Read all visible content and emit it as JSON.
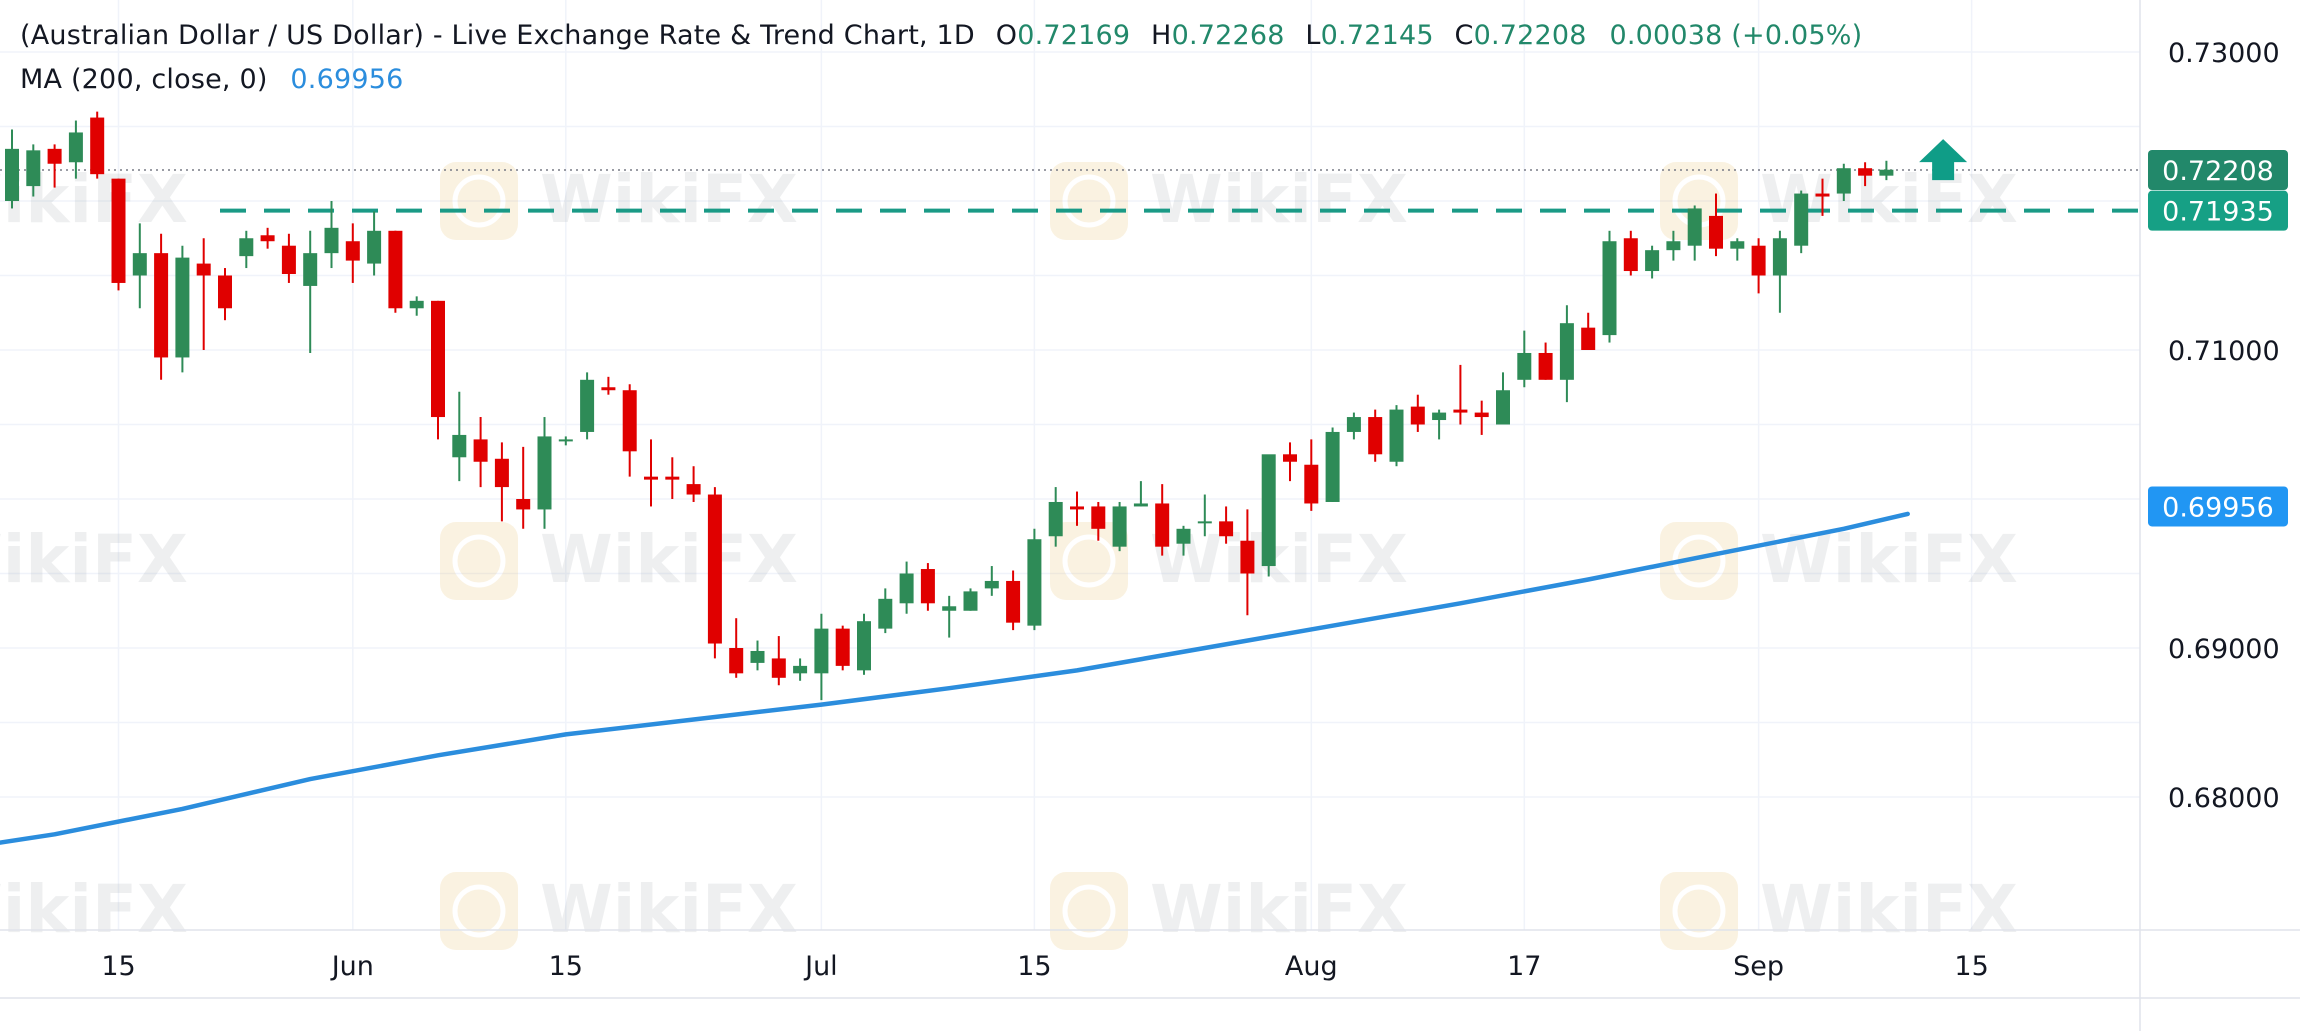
{
  "header": {
    "title": "(Australian Dollar / US Dollar) - Live Exchange Rate & Trend Chart, 1D",
    "open_label": "O",
    "open_value": "0.72169",
    "high_label": "H",
    "high_value": "0.72268",
    "low_label": "L",
    "low_value": "0.72145",
    "close_label": "C",
    "close_value": "0.72208",
    "change": "0.00038 (+0.05%)"
  },
  "indicator": {
    "label": "MA (200, close, 0)",
    "value": "0.69956"
  },
  "watermark_text": "WikiFX",
  "colors": {
    "up": "#2e8b57",
    "down": "#e00000",
    "ma": "#2b8ddd",
    "resistance": "#1a9a86",
    "last_price_tag": "#22886a",
    "resistance_tag": "#16a085",
    "ma_tag": "#2196f3",
    "grid": "#f0f3fa",
    "axis_text": "#131722"
  },
  "chart_data": {
    "type": "candlestick",
    "title": "(Australian Dollar / US Dollar) - Live Exchange Rate & Trend Chart, 1D",
    "timeframe": "1D",
    "y_axis": {
      "position": "right",
      "range": [
        0.6755,
        0.7302
      ],
      "ticks": [
        "0.73000",
        "0.71000",
        "0.69000",
        "0.68000"
      ]
    },
    "x_axis": {
      "ticks": [
        {
          "label": "15",
          "bar": 5
        },
        {
          "label": "Jun",
          "bar": 16
        },
        {
          "label": "15",
          "bar": 26
        },
        {
          "label": "Jul",
          "bar": 38
        },
        {
          "label": "15",
          "bar": 48
        },
        {
          "label": "Aug",
          "bar": 61
        },
        {
          "label": "17",
          "bar": 71
        },
        {
          "label": "Sep",
          "bar": 82
        },
        {
          "label": "15",
          "bar": 92
        }
      ]
    },
    "grid": true,
    "candles": [
      [
        0.72,
        0.7248,
        0.7195,
        0.7235
      ],
      [
        0.721,
        0.7238,
        0.7203,
        0.7234
      ],
      [
        0.7235,
        0.7238,
        0.7209,
        0.7225
      ],
      [
        0.7226,
        0.7254,
        0.7215,
        0.7246
      ],
      [
        0.7256,
        0.726,
        0.7215,
        0.7218
      ],
      [
        0.7215,
        0.7215,
        0.714,
        0.7145
      ],
      [
        0.715,
        0.7185,
        0.7128,
        0.7165
      ],
      [
        0.7165,
        0.7178,
        0.708,
        0.7095
      ],
      [
        0.7095,
        0.717,
        0.7085,
        0.7162
      ],
      [
        0.7158,
        0.7175,
        0.71,
        0.715
      ],
      [
        0.715,
        0.7155,
        0.712,
        0.7128
      ],
      [
        0.7163,
        0.718,
        0.7155,
        0.7175
      ],
      [
        0.7177,
        0.7182,
        0.7168,
        0.7173
      ],
      [
        0.717,
        0.7178,
        0.7145,
        0.7151
      ],
      [
        0.7143,
        0.718,
        0.7098,
        0.7165
      ],
      [
        0.7165,
        0.72,
        0.7155,
        0.7182
      ],
      [
        0.7173,
        0.7185,
        0.7145,
        0.716
      ],
      [
        0.7158,
        0.7193,
        0.715,
        0.718
      ],
      [
        0.718,
        0.718,
        0.7125,
        0.7128
      ],
      [
        0.7128,
        0.7136,
        0.7123,
        0.7133
      ],
      [
        0.7133,
        0.7133,
        0.704,
        0.7055
      ],
      [
        0.7028,
        0.7072,
        0.7012,
        0.7043
      ],
      [
        0.704,
        0.7055,
        0.7008,
        0.7025
      ],
      [
        0.7027,
        0.7038,
        0.6985,
        0.7008
      ],
      [
        0.7,
        0.7035,
        0.698,
        0.6993
      ],
      [
        0.6993,
        0.7055,
        0.698,
        0.7042
      ],
      [
        0.704,
        0.7042,
        0.7036,
        0.704
      ],
      [
        0.7045,
        0.7085,
        0.704,
        0.708
      ],
      [
        0.7075,
        0.7082,
        0.707,
        0.7073
      ],
      [
        0.7073,
        0.7077,
        0.7015,
        0.7032
      ],
      [
        0.7015,
        0.704,
        0.6995,
        0.7013
      ],
      [
        0.7015,
        0.7028,
        0.7,
        0.7013
      ],
      [
        0.701,
        0.7022,
        0.6998,
        0.7003
      ],
      [
        0.7003,
        0.7008,
        0.6893,
        0.6903
      ],
      [
        0.69,
        0.692,
        0.688,
        0.6883
      ],
      [
        0.689,
        0.6905,
        0.6885,
        0.6898
      ],
      [
        0.6893,
        0.6908,
        0.6875,
        0.688
      ],
      [
        0.6883,
        0.6893,
        0.6878,
        0.6888
      ],
      [
        0.6883,
        0.6923,
        0.6865,
        0.6913
      ],
      [
        0.6913,
        0.6915,
        0.6885,
        0.6888
      ],
      [
        0.6885,
        0.6923,
        0.6882,
        0.6918
      ],
      [
        0.6913,
        0.694,
        0.691,
        0.6933
      ],
      [
        0.693,
        0.6958,
        0.6923,
        0.695
      ],
      [
        0.6953,
        0.6957,
        0.6925,
        0.693
      ],
      [
        0.6925,
        0.6935,
        0.6907,
        0.6928
      ],
      [
        0.6925,
        0.694,
        0.6925,
        0.6938
      ],
      [
        0.694,
        0.6955,
        0.6935,
        0.6945
      ],
      [
        0.6945,
        0.6952,
        0.6912,
        0.6917
      ],
      [
        0.6915,
        0.698,
        0.6912,
        0.6973
      ],
      [
        0.6975,
        0.7008,
        0.6968,
        0.6998
      ],
      [
        0.6995,
        0.7005,
        0.6982,
        0.6993
      ],
      [
        0.6995,
        0.6998,
        0.6972,
        0.698
      ],
      [
        0.6968,
        0.6998,
        0.6965,
        0.6995
      ],
      [
        0.6995,
        0.7012,
        0.6995,
        0.6997
      ],
      [
        0.6997,
        0.701,
        0.6962,
        0.6968
      ],
      [
        0.697,
        0.6982,
        0.6962,
        0.698
      ],
      [
        0.6985,
        0.7003,
        0.6975,
        0.6985
      ],
      [
        0.6985,
        0.6995,
        0.697,
        0.6975
      ],
      [
        0.6972,
        0.6993,
        0.6922,
        0.695
      ],
      [
        0.6955,
        0.7025,
        0.6948,
        0.703
      ],
      [
        0.703,
        0.7038,
        0.7012,
        0.7025
      ],
      [
        0.7023,
        0.704,
        0.6992,
        0.6997
      ],
      [
        0.6998,
        0.7048,
        0.6998,
        0.7045
      ],
      [
        0.7045,
        0.7058,
        0.704,
        0.7055
      ],
      [
        0.7055,
        0.706,
        0.7025,
        0.703
      ],
      [
        0.7025,
        0.7063,
        0.7022,
        0.706
      ],
      [
        0.7062,
        0.707,
        0.7045,
        0.705
      ],
      [
        0.7053,
        0.706,
        0.704,
        0.7058
      ],
      [
        0.706,
        0.709,
        0.705,
        0.7058
      ],
      [
        0.7058,
        0.7066,
        0.7043,
        0.7055
      ],
      [
        0.705,
        0.7085,
        0.705,
        0.7073
      ],
      [
        0.708,
        0.7113,
        0.7075,
        0.7098
      ],
      [
        0.7098,
        0.7105,
        0.708,
        0.708
      ],
      [
        0.708,
        0.713,
        0.7065,
        0.7118
      ],
      [
        0.7115,
        0.7125,
        0.71,
        0.71
      ],
      [
        0.711,
        0.718,
        0.7105,
        0.7173
      ],
      [
        0.7175,
        0.718,
        0.715,
        0.7153
      ],
      [
        0.7153,
        0.717,
        0.7148,
        0.7167
      ],
      [
        0.7167,
        0.718,
        0.716,
        0.7173
      ],
      [
        0.717,
        0.7197,
        0.716,
        0.7195
      ],
      [
        0.719,
        0.7205,
        0.7163,
        0.7168
      ],
      [
        0.7168,
        0.7175,
        0.716,
        0.7173
      ],
      [
        0.717,
        0.7175,
        0.7138,
        0.715
      ],
      [
        0.715,
        0.718,
        0.7125,
        0.7175
      ],
      [
        0.717,
        0.7207,
        0.7165,
        0.7205
      ],
      [
        0.7205,
        0.7215,
        0.719,
        0.7203
      ],
      [
        0.7205,
        0.7225,
        0.72,
        0.7222
      ],
      [
        0.7222,
        0.7226,
        0.721,
        0.7217
      ],
      [
        0.7217,
        0.7227,
        0.7214,
        0.7221
      ]
    ],
    "series": [
      {
        "name": "MA (200, close, 0)",
        "points": [
          [
            -5.3,
            0.6759
          ],
          [
            2,
            0.6775
          ],
          [
            8,
            0.6792
          ],
          [
            14,
            0.6812
          ],
          [
            20,
            0.6828
          ],
          [
            26,
            0.6842
          ],
          [
            32,
            0.6852
          ],
          [
            38,
            0.6862
          ],
          [
            44,
            0.6873
          ],
          [
            50,
            0.6885
          ],
          [
            56,
            0.69
          ],
          [
            62,
            0.6915
          ],
          [
            68,
            0.693
          ],
          [
            74,
            0.6946
          ],
          [
            80,
            0.6963
          ],
          [
            86,
            0.698
          ],
          [
            89,
            0.699
          ]
        ],
        "last_value": "0.69956"
      }
    ],
    "horizontal_lines": [
      {
        "value": 0.71935,
        "label": "0.71935",
        "style": "dashed"
      },
      {
        "value": 0.72208,
        "label": "0.72208",
        "style": "dotted"
      }
    ],
    "price_tags": [
      {
        "value": 0.72208,
        "label": "0.72208"
      },
      {
        "value": 0.71935,
        "label": "0.71935"
      },
      {
        "value": 0.6995,
        "label": "0.69956"
      }
    ],
    "annotations": [
      {
        "type": "arrow-up",
        "bar": 90.1
      }
    ]
  }
}
